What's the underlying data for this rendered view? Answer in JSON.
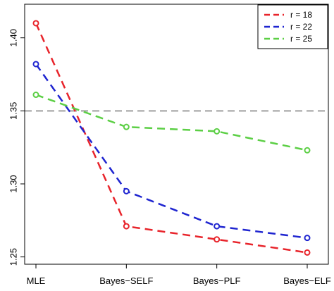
{
  "chart_data": {
    "type": "line",
    "categories": [
      "MLE",
      "Bayes−SELF",
      "Bayes−PLF",
      "Bayes−ELF"
    ],
    "series": [
      {
        "name": "r = 18",
        "color": "#e8242b",
        "values": [
          1.41,
          1.271,
          1.262,
          1.253
        ]
      },
      {
        "name": "r = 22",
        "color": "#1f25d0",
        "values": [
          1.382,
          1.295,
          1.271,
          1.263
        ]
      },
      {
        "name": "r = 25",
        "color": "#5ccf45",
        "values": [
          1.361,
          1.339,
          1.336,
          1.323
        ]
      }
    ],
    "reference_line": {
      "y": 1.35,
      "color": "#b3b3b3"
    },
    "y_ticks": [
      1.25,
      1.3,
      1.35,
      1.4
    ],
    "y_tick_labels": [
      "1.25",
      "1.30",
      "1.35",
      "1.40"
    ],
    "ylim": [
      1.245,
      1.423
    ],
    "title": "",
    "xlabel": "",
    "ylabel": "",
    "grid": false,
    "legend_position": "top-right",
    "line_style": "dashed",
    "marker": "open-circle"
  }
}
